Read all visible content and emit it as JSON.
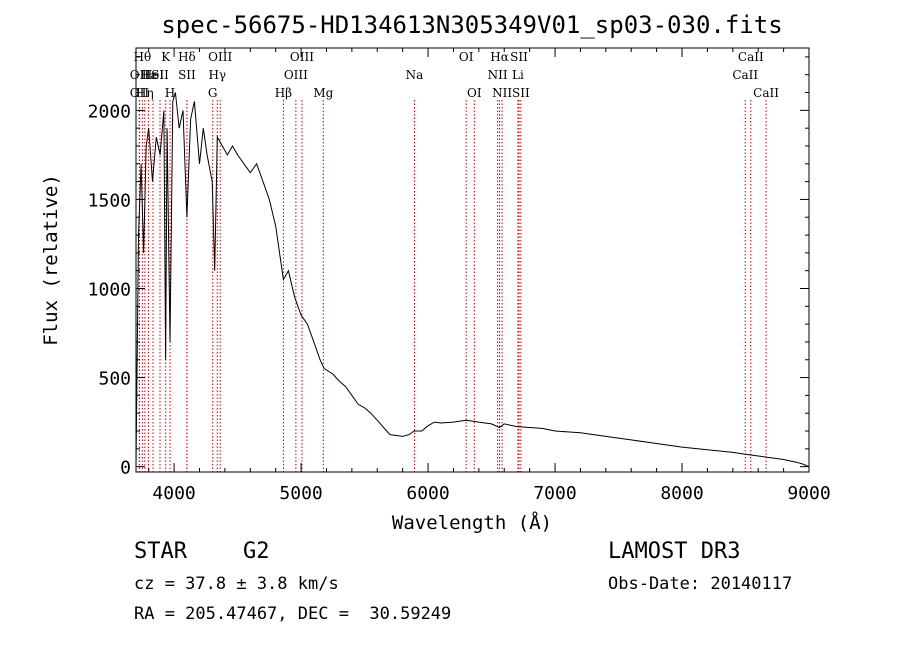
{
  "chart_data": {
    "type": "line",
    "title": "spec-56675-HD134613N305349V01_sp03-030.fits",
    "xlabel": "Wavelength (Å)",
    "ylabel": "Flux (relative)",
    "xlim": [
      3700,
      9000
    ],
    "ylim": [
      -30,
      2350
    ],
    "xticks": [
      4000,
      5000,
      6000,
      7000,
      8000,
      9000
    ],
    "yticks": [
      0,
      500,
      1000,
      1500,
      2000
    ],
    "series": [
      {
        "name": "flux",
        "x": [
          3700,
          3720,
          3740,
          3760,
          3780,
          3800,
          3830,
          3860,
          3890,
          3920,
          3933,
          3945,
          3968,
          3990,
          4010,
          4040,
          4070,
          4101,
          4130,
          4160,
          4200,
          4230,
          4260,
          4300,
          4320,
          4340,
          4380,
          4420,
          4460,
          4500,
          4550,
          4600,
          4650,
          4700,
          4750,
          4800,
          4861,
          4900,
          4950,
          5000,
          5050,
          5100,
          5150,
          5183,
          5250,
          5300,
          5350,
          5400,
          5450,
          5500,
          5550,
          5600,
          5650,
          5700,
          5750,
          5800,
          5850,
          5890,
          5950,
          6000,
          6050,
          6100,
          6200,
          6300,
          6400,
          6500,
          6563,
          6600,
          6700,
          6800,
          6900,
          7000,
          7200,
          7400,
          7600,
          7800,
          8000,
          8200,
          8400,
          8500,
          8600,
          8700,
          8800,
          8900,
          8950,
          9000
        ],
        "values": [
          0,
          1300,
          1700,
          1200,
          1800,
          1900,
          1600,
          1850,
          1750,
          2000,
          600,
          1900,
          700,
          2050,
          2100,
          1900,
          2000,
          1400,
          1950,
          2050,
          1700,
          1900,
          1750,
          1600,
          1100,
          1850,
          1800,
          1750,
          1800,
          1750,
          1700,
          1650,
          1700,
          1600,
          1500,
          1350,
          1050,
          1100,
          950,
          850,
          800,
          700,
          600,
          550,
          520,
          480,
          450,
          400,
          350,
          330,
          300,
          260,
          220,
          180,
          175,
          170,
          180,
          200,
          200,
          230,
          250,
          245,
          250,
          260,
          250,
          240,
          220,
          240,
          225,
          220,
          215,
          200,
          190,
          170,
          150,
          130,
          110,
          95,
          80,
          70,
          60,
          50,
          40,
          25,
          15,
          0
        ]
      }
    ],
    "line_markers": [
      {
        "wavelength": 3727,
        "label": "OII",
        "row": 2
      },
      {
        "wavelength": 3727,
        "label": "OII",
        "row": 3
      },
      {
        "wavelength": 3750,
        "label": "Hθ",
        "row": 1
      },
      {
        "wavelength": 3770,
        "label": "Hη",
        "row": 3
      },
      {
        "wavelength": 3798,
        "label": "Hε",
        "row": 2
      },
      {
        "wavelength": 3834,
        "label": "HeI",
        "row": 2
      },
      {
        "wavelength": 3889,
        "label": "SII",
        "row": 2
      },
      {
        "wavelength": 3934,
        "label": "K",
        "row": 1
      },
      {
        "wavelength": 3968,
        "label": "H",
        "row": 3
      },
      {
        "wavelength": 4101,
        "label": "Hδ",
        "row": 1
      },
      {
        "wavelength": 4101,
        "label": "SII",
        "row": 2
      },
      {
        "wavelength": 4304,
        "label": "G",
        "row": 3
      },
      {
        "wavelength": 4340,
        "label": "Hγ",
        "row": 2
      },
      {
        "wavelength": 4363,
        "label": "OIII",
        "row": 1
      },
      {
        "wavelength": 4861,
        "label": "Hβ",
        "row": 3
      },
      {
        "wavelength": 4959,
        "label": "OIII",
        "row": 2
      },
      {
        "wavelength": 5007,
        "label": "OIII",
        "row": 1
      },
      {
        "wavelength": 5175,
        "label": "Mg",
        "row": 3
      },
      {
        "wavelength": 5893,
        "label": "Na",
        "row": 2
      },
      {
        "wavelength": 6300,
        "label": "OI",
        "row": 1
      },
      {
        "wavelength": 6364,
        "label": "OI",
        "row": 3
      },
      {
        "wavelength": 6548,
        "label": "NII",
        "row": 2
      },
      {
        "wavelength": 6563,
        "label": "Hα",
        "row": 1
      },
      {
        "wavelength": 6583,
        "label": "NII",
        "row": 3
      },
      {
        "wavelength": 6708,
        "label": "Li",
        "row": 2
      },
      {
        "wavelength": 6716,
        "label": "SII",
        "row": 1
      },
      {
        "wavelength": 6731,
        "label": "SII",
        "row": 3
      },
      {
        "wavelength": 8498,
        "label": "CaII",
        "row": 2
      },
      {
        "wavelength": 8542,
        "label": "CaII",
        "row": 1
      },
      {
        "wavelength": 8662,
        "label": "CaII",
        "row": 3
      }
    ]
  },
  "info": {
    "object_class": "STAR",
    "subclass": "G2",
    "redshift": "cz = 37.8 ± 3.8 km/s",
    "coords": "RA = 205.47467, DEC =  30.59249",
    "survey": "LAMOST DR3",
    "obs_date": "Obs-Date: 20140117"
  },
  "colors": {
    "line": "#000000",
    "marker": "#cc0000",
    "axes": "#000000"
  }
}
